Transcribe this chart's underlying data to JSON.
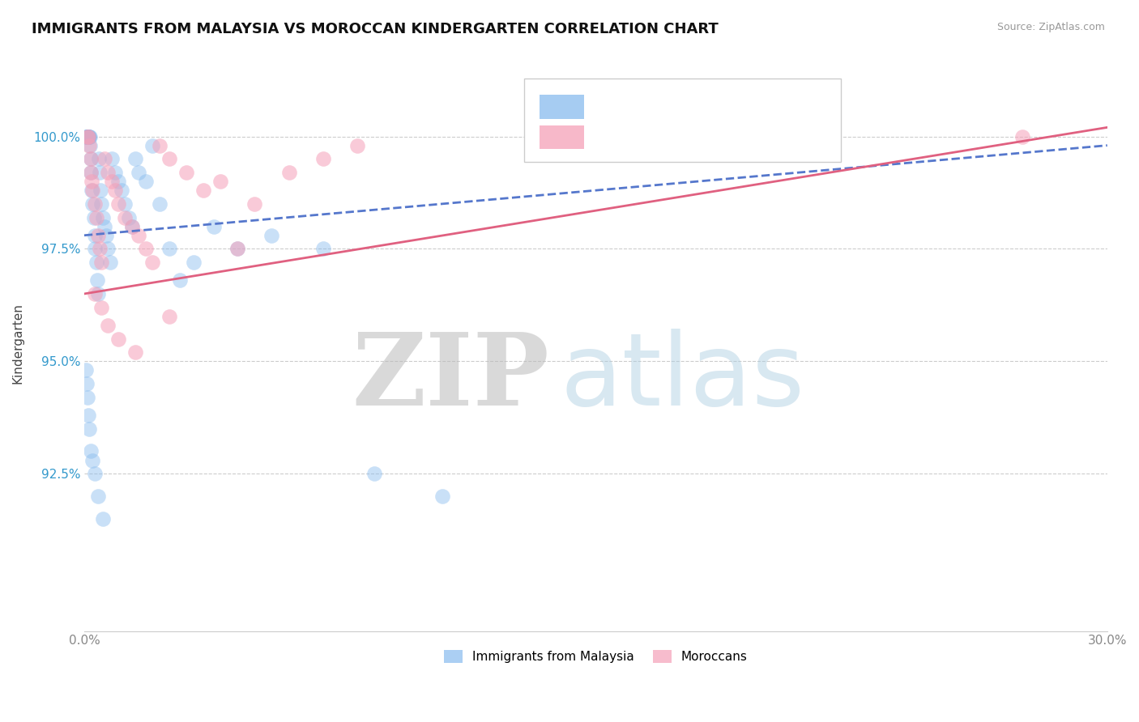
{
  "title": "IMMIGRANTS FROM MALAYSIA VS MOROCCAN KINDERGARTEN CORRELATION CHART",
  "source": "Source: ZipAtlas.com",
  "ylabel": "Kindergarten",
  "xmin": 0.0,
  "xmax": 30.0,
  "ymin": 89.0,
  "ymax": 101.8,
  "yticks": [
    92.5,
    95.0,
    97.5,
    100.0
  ],
  "ytick_labels": [
    "92.5%",
    "95.0%",
    "97.5%",
    "100.0%"
  ],
  "malaysia_color": "#88BBEE",
  "morocco_color": "#F5A0B8",
  "malaysia_line_color": "#5577CC",
  "morocco_line_color": "#E06080",
  "legend_label_malaysia": "Immigrants from Malaysia",
  "legend_label_morocco": "Moroccans",
  "malaysia_x": [
    0.05,
    0.07,
    0.08,
    0.09,
    0.1,
    0.1,
    0.11,
    0.12,
    0.13,
    0.14,
    0.15,
    0.16,
    0.17,
    0.18,
    0.2,
    0.22,
    0.25,
    0.28,
    0.3,
    0.32,
    0.35,
    0.38,
    0.4,
    0.42,
    0.45,
    0.48,
    0.5,
    0.55,
    0.6,
    0.65,
    0.7,
    0.75,
    0.8,
    0.9,
    1.0,
    1.1,
    1.2,
    1.3,
    1.4,
    1.5,
    1.6,
    1.8,
    2.0,
    2.2,
    2.5,
    2.8,
    3.2,
    3.8,
    4.5,
    5.5,
    7.0,
    8.5,
    10.5,
    0.06,
    0.08,
    0.1,
    0.12,
    0.15,
    0.2,
    0.25,
    0.3,
    0.4,
    0.55
  ],
  "malaysia_y": [
    100.0,
    100.0,
    100.0,
    100.0,
    100.0,
    100.0,
    100.0,
    100.0,
    100.0,
    100.0,
    100.0,
    100.0,
    99.8,
    99.5,
    99.2,
    98.8,
    98.5,
    98.2,
    97.8,
    97.5,
    97.2,
    96.8,
    96.5,
    99.5,
    99.2,
    98.8,
    98.5,
    98.2,
    98.0,
    97.8,
    97.5,
    97.2,
    99.5,
    99.2,
    99.0,
    98.8,
    98.5,
    98.2,
    98.0,
    99.5,
    99.2,
    99.0,
    99.8,
    98.5,
    97.5,
    96.8,
    97.2,
    98.0,
    97.5,
    97.8,
    97.5,
    92.5,
    92.0,
    94.8,
    94.5,
    94.2,
    93.8,
    93.5,
    93.0,
    92.8,
    92.5,
    92.0,
    91.5
  ],
  "morocco_x": [
    0.1,
    0.12,
    0.15,
    0.18,
    0.2,
    0.22,
    0.25,
    0.3,
    0.35,
    0.4,
    0.45,
    0.5,
    0.6,
    0.7,
    0.8,
    0.9,
    1.0,
    1.2,
    1.4,
    1.6,
    1.8,
    2.0,
    2.2,
    2.5,
    3.0,
    3.5,
    4.0,
    5.0,
    6.0,
    7.0,
    8.0,
    0.3,
    0.5,
    0.7,
    1.0,
    1.5,
    2.5,
    4.5,
    27.5
  ],
  "morocco_y": [
    100.0,
    100.0,
    99.8,
    99.5,
    99.2,
    99.0,
    98.8,
    98.5,
    98.2,
    97.8,
    97.5,
    97.2,
    99.5,
    99.2,
    99.0,
    98.8,
    98.5,
    98.2,
    98.0,
    97.8,
    97.5,
    97.2,
    99.8,
    99.5,
    99.2,
    98.8,
    99.0,
    98.5,
    99.2,
    99.5,
    99.8,
    96.5,
    96.2,
    95.8,
    95.5,
    95.2,
    96.0,
    97.5,
    100.0
  ],
  "trend_mal_x0": 0.0,
  "trend_mal_x1": 30.0,
  "trend_mal_y0": 97.8,
  "trend_mal_y1": 99.8,
  "trend_mor_x0": 0.0,
  "trend_mor_x1": 30.0,
  "trend_mor_y0": 96.5,
  "trend_mor_y1": 100.2
}
